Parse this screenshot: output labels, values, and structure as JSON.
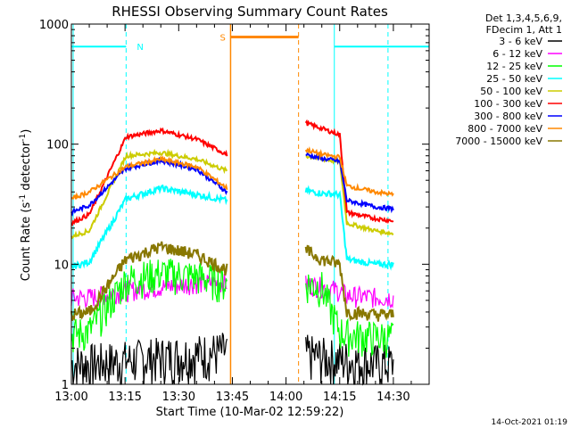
{
  "chart_data": {
    "type": "line",
    "title": "RHESSI Observing Summary Count Rates",
    "xlabel": "Start Time (10-Mar-02 12:59:22)",
    "ylabel_main": "Count Rate (s",
    "ylabel_sup1": "-1",
    "ylabel_mid": " detector",
    "ylabel_sup2": "-1",
    "ylabel_end": ")",
    "x_range_min": [
      0,
      100
    ],
    "y_range": [
      1,
      1000
    ],
    "y_scale": "log",
    "x_ticks": [
      {
        "label": "13:00",
        "t": 0
      },
      {
        "label": "13:15",
        "t": 15
      },
      {
        "label": "13:30",
        "t": 30
      },
      {
        "label": "13:45",
        "t": 45
      },
      {
        "label": "14:00",
        "t": 60
      },
      {
        "label": "14:15",
        "t": 75
      },
      {
        "label": "14:30",
        "t": 90
      }
    ],
    "y_ticks": [
      {
        "label": "1",
        "v": 1
      },
      {
        "label": "10",
        "v": 10
      },
      {
        "label": "100",
        "v": 100
      },
      {
        "label": "1000",
        "v": 1000
      }
    ],
    "legend_header": [
      "Det 1,3,4,5,6,9,",
      "FDecim 1, Att 1"
    ],
    "legend_position": "right",
    "annotations": {
      "night_label": "N",
      "saa_label": "S",
      "timestamp": "14-Oct-2021 01:19"
    },
    "series": [
      {
        "name": "3 - 6 keV",
        "color": "#000000",
        "values_pre": [
          1.5,
          1.5,
          1.6,
          1.7,
          1.8,
          1.9
        ],
        "values_post": [
          1.8,
          1.7,
          1.6,
          1.6,
          1.5,
          1.5
        ]
      },
      {
        "name": "6 - 12 keV",
        "color": "#ff00ff",
        "values_pre": [
          5.3,
          5.3,
          6.0,
          6.5,
          7.0,
          7.0
        ],
        "values_post": [
          6.8,
          6.5,
          6.0,
          5.5,
          5.3,
          5.3
        ]
      },
      {
        "name": "12 - 25 keV",
        "color": "#00ff00",
        "values_pre": [
          2.6,
          2.8,
          7.5,
          8.5,
          8.0,
          7.0
        ],
        "values_post": [
          7.0,
          6.5,
          2.8,
          2.6,
          2.5,
          2.5
        ]
      },
      {
        "name": "25 - 50 keV",
        "color": "#00ffff",
        "values_pre": [
          9.5,
          10.5,
          35,
          43,
          38,
          34
        ],
        "values_post": [
          41,
          39,
          38,
          11,
          10,
          10
        ]
      },
      {
        "name": "50 - 100 keV",
        "color": "#cccc00",
        "values_pre": [
          17,
          19,
          80,
          85,
          75,
          60
        ],
        "values_post": [
          80,
          75,
          72,
          22,
          19,
          18
        ]
      },
      {
        "name": "100 - 300 keV",
        "color": "#ff0000",
        "values_pre": [
          22,
          26,
          115,
          130,
          110,
          82
        ],
        "values_post": [
          150,
          135,
          120,
          27,
          24,
          23
        ]
      },
      {
        "name": "300 - 800 keV",
        "color": "#0000ff",
        "values_pre": [
          27,
          31,
          63,
          73,
          62,
          40
        ],
        "values_post": [
          82,
          76,
          72,
          34,
          30,
          29
        ]
      },
      {
        "name": "800 - 7000 keV",
        "color": "#ff8800",
        "values_pre": [
          35,
          40,
          65,
          75,
          65,
          43
        ],
        "values_post": [
          90,
          82,
          78,
          45,
          40,
          38
        ]
      },
      {
        "name": "7000 - 15000 keV",
        "color": "#887700",
        "values_pre": [
          3.8,
          4.0,
          11,
          14,
          12,
          9
        ],
        "values_post": [
          13,
          11,
          10,
          4.0,
          3.8,
          3.8
        ]
      }
    ]
  }
}
